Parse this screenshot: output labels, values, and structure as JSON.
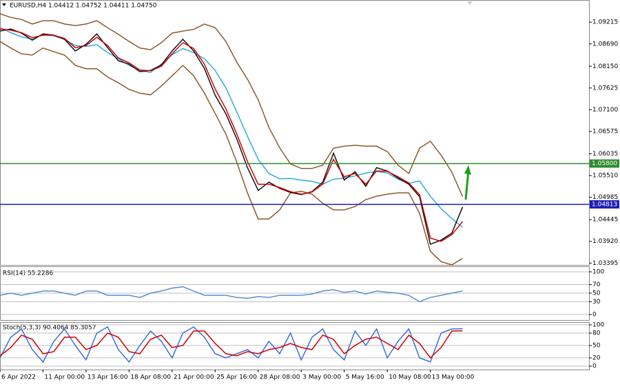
{
  "chart_data": [
    {
      "type": "line",
      "title": "EURUSD,H4  1.04412 1.04752 1.04411 1.04750",
      "x": [
        0,
        4,
        8,
        12,
        16,
        20,
        24,
        28,
        32,
        36,
        40,
        44,
        48,
        52,
        56,
        60,
        64,
        68,
        72,
        76,
        80,
        84,
        88,
        92,
        96,
        100,
        104,
        108,
        112,
        116,
        120,
        124,
        128,
        132,
        136,
        140,
        144,
        148,
        152,
        156,
        160,
        164,
        168,
        172
      ],
      "xlim": [
        0,
        219
      ],
      "ylim": [
        1.0335,
        1.0975
      ],
      "yticks": [
        1.09215,
        {
          "value": 1.0869,
          "label": "1.08690"
        },
        {
          "value": 1.0815,
          "label": "1.08150"
        },
        1.07625,
        {
          "value": 1.071,
          "label": "1.07100"
        },
        1.06575,
        1.06035,
        {
          "value": 1.0551,
          "label": "1.05510"
        },
        1.04985,
        1.04445,
        {
          "value": 1.0392,
          "label": "1.03920"
        },
        1.03395
      ],
      "hlines": [
        {
          "value": 1.058,
          "label": "1.05800",
          "color": "#2e8b2e"
        },
        {
          "value": 1.04813,
          "label": "1.04813",
          "color": "#1f1fb4"
        }
      ],
      "series": [
        {
          "color": "#8b5a2b",
          "values": [
            1.0942,
            1.0933,
            1.0928,
            1.0917,
            1.0925,
            1.0925,
            1.0917,
            1.0913,
            1.0917,
            1.0925,
            1.0908,
            1.0892,
            1.0875,
            1.0859,
            1.0855,
            1.0872,
            1.0895,
            1.09,
            1.0904,
            1.0917,
            1.0908,
            1.0875,
            1.0825,
            1.0784,
            1.0734,
            1.0667,
            1.0618,
            1.0579,
            1.0568,
            1.0568,
            1.0576,
            1.0617,
            1.0622,
            1.0624,
            1.0622,
            1.0622,
            1.0609,
            1.0576,
            1.0556,
            1.0617,
            1.0634,
            1.06,
            1.0559,
            1.05
          ]
        },
        {
          "color": "#8b5a2b",
          "values": [
            1.0875,
            1.0859,
            1.0845,
            1.0842,
            1.0859,
            1.085,
            1.0842,
            1.0817,
            1.0809,
            1.0809,
            1.0789,
            1.0775,
            1.0759,
            1.075,
            1.0746,
            1.0767,
            1.0792,
            1.0817,
            1.0792,
            1.075,
            1.0701,
            1.0651,
            1.0584,
            1.0509,
            1.0446,
            1.0446,
            1.0468,
            1.0509,
            1.0513,
            1.0506,
            1.0484,
            1.0468,
            1.0468,
            1.0476,
            1.0493,
            1.0501,
            1.0506,
            1.0509,
            1.0509,
            1.046,
            1.0368,
            1.0343,
            1.0335,
            1.0351
          ]
        },
        {
          "color": "#33aadd",
          "values": [
            1.0908,
            1.0896,
            1.0886,
            1.088,
            1.0892,
            1.0888,
            1.088,
            1.0865,
            1.0863,
            1.0867,
            1.0848,
            1.0833,
            1.0817,
            1.0805,
            1.08,
            1.082,
            1.0843,
            1.0858,
            1.0848,
            1.0833,
            1.0805,
            1.0763,
            1.0705,
            1.0646,
            1.059,
            1.0556,
            1.0543,
            1.0544,
            1.054,
            1.0537,
            1.053,
            1.0542,
            1.0545,
            1.055,
            1.0557,
            1.0561,
            1.0557,
            1.0542,
            1.0532,
            1.0538,
            1.0501,
            1.0471,
            1.0447,
            1.0426
          ]
        },
        {
          "color": "#111111",
          "values": [
            1.09,
            1.0905,
            1.0895,
            1.0878,
            1.0893,
            1.089,
            1.088,
            1.0852,
            1.0868,
            1.0893,
            1.086,
            1.0828,
            1.082,
            1.0802,
            1.0805,
            1.0818,
            1.0852,
            1.088,
            1.0852,
            1.081,
            1.0745,
            1.07,
            1.064,
            1.057,
            1.0515,
            1.0535,
            1.052,
            1.051,
            1.0505,
            1.0512,
            1.0535,
            1.0605,
            1.054,
            1.056,
            1.0525,
            1.057,
            1.0562,
            1.0545,
            1.053,
            1.05,
            1.0385,
            1.0395,
            1.0412,
            1.0475
          ]
        },
        {
          "color": "#d00000",
          "values": [
            1.0905,
            1.0902,
            1.0896,
            1.0884,
            1.089,
            1.089,
            1.0882,
            1.086,
            1.0865,
            1.0885,
            1.0865,
            1.0835,
            1.0823,
            1.0806,
            1.0804,
            1.0815,
            1.0845,
            1.0872,
            1.0858,
            1.082,
            1.076,
            1.0712,
            1.0652,
            1.0585,
            1.053,
            1.053,
            1.0522,
            1.0512,
            1.0506,
            1.0511,
            1.053,
            1.059,
            1.0548,
            1.0556,
            1.053,
            1.0562,
            1.0561,
            1.0548,
            1.0533,
            1.0505,
            1.04,
            1.0392,
            1.0408,
            1.044
          ]
        }
      ]
    },
    {
      "type": "line",
      "title": "RSI(14) 55.2286",
      "x": [
        0,
        4,
        8,
        12,
        16,
        20,
        24,
        28,
        32,
        36,
        40,
        44,
        48,
        52,
        56,
        60,
        64,
        68,
        72,
        76,
        80,
        84,
        88,
        92,
        96,
        100,
        104,
        108,
        112,
        116,
        120,
        124,
        128,
        132,
        136,
        140,
        144,
        148,
        152,
        156,
        160,
        164,
        168,
        172
      ],
      "xlim": [
        0,
        219
      ],
      "ylim": [
        -12.9,
        112.9
      ],
      "yticks": [
        100,
        70,
        50,
        30,
        0
      ],
      "grid": true,
      "series": [
        {
          "color": "#5b8fd0",
          "values": [
            45,
            50,
            45,
            50,
            55,
            55,
            50,
            45,
            55,
            55,
            45,
            45,
            45,
            40,
            50,
            55,
            62,
            65,
            55,
            45,
            45,
            45,
            40,
            38,
            42,
            40,
            45,
            45,
            45,
            48,
            55,
            58,
            52,
            55,
            48,
            55,
            52,
            50,
            45,
            30,
            40,
            45,
            50,
            55.2286
          ]
        }
      ]
    },
    {
      "type": "line",
      "title": "Stoch(5,3,3) 90.4064 85.3057",
      "x": [
        0,
        4,
        8,
        12,
        16,
        20,
        24,
        28,
        32,
        36,
        40,
        44,
        48,
        52,
        56,
        60,
        64,
        68,
        72,
        76,
        80,
        84,
        88,
        92,
        96,
        100,
        104,
        108,
        112,
        116,
        120,
        124,
        128,
        132,
        136,
        140,
        144,
        148,
        152,
        156,
        160,
        164,
        168,
        172
      ],
      "xlim": [
        0,
        219
      ],
      "ylim": [
        -8.3,
        106.7
      ],
      "yticks": [
        100,
        80,
        50,
        20,
        0
      ],
      "grid": true,
      "xticks": [
        {
          "value": 0,
          "label": "6 Apr 2022"
        },
        {
          "value": 16,
          "label": "11 Apr 00:00"
        },
        {
          "value": 32,
          "label": "13 Apr 16:00"
        },
        {
          "value": 48,
          "label": "18 Apr 08:00"
        },
        {
          "value": 64,
          "label": "21 Apr 00:00"
        },
        {
          "value": 80,
          "label": "25 Apr 16:00"
        },
        {
          "value": 96,
          "label": "28 Apr 08:00"
        },
        {
          "value": 112,
          "label": "3 May 00:00"
        },
        {
          "value": 128,
          "label": "5 May 16:00"
        },
        {
          "value": 144,
          "label": "10 May 08:00"
        },
        {
          "value": 160,
          "label": "13 May 00:00"
        }
      ],
      "series": [
        {
          "color": "#3a6fd8",
          "values": [
            20,
            70,
            90,
            40,
            10,
            60,
            90,
            50,
            15,
            80,
            95,
            40,
            10,
            50,
            85,
            60,
            20,
            80,
            95,
            70,
            30,
            20,
            30,
            40,
            20,
            60,
            30,
            80,
            15,
            70,
            90,
            40,
            15,
            85,
            50,
            90,
            20,
            60,
            90,
            20,
            10,
            80,
            90,
            90.4064
          ]
        },
        {
          "color": "#d00000",
          "values": [
            25,
            45,
            75,
            65,
            30,
            35,
            70,
            70,
            40,
            50,
            80,
            70,
            35,
            30,
            65,
            75,
            45,
            50,
            85,
            85,
            55,
            30,
            25,
            35,
            30,
            40,
            45,
            55,
            45,
            40,
            75,
            65,
            30,
            50,
            65,
            70,
            55,
            40,
            75,
            55,
            20,
            45,
            85,
            85.3057
          ]
        }
      ]
    }
  ]
}
